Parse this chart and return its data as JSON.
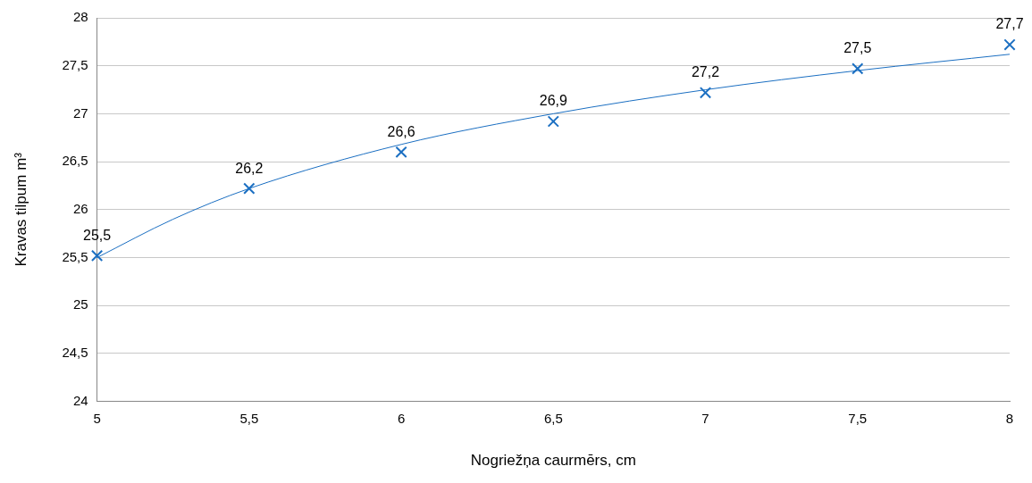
{
  "chart_data": {
    "type": "scatter",
    "xlabel": "Nogriežņa caurmērs, cm",
    "ylabel": "Kravas tilpum m³",
    "xlim": [
      5,
      8
    ],
    "xticks": [
      5,
      {
        "value": 5.5,
        "label": "5,5"
      },
      6,
      {
        "value": 6.5,
        "label": "6,5"
      },
      7,
      {
        "value": 7.5,
        "label": "7,5"
      },
      8
    ],
    "ylim": [
      24,
      28
    ],
    "yticks": [
      24,
      {
        "value": 24.5,
        "label": "24,5"
      },
      25,
      {
        "value": 25.5,
        "label": "25,5"
      },
      26,
      {
        "value": 26.5,
        "label": "26,5"
      },
      27,
      {
        "value": 27.5,
        "label": "27,5"
      },
      28
    ],
    "grid": "y",
    "legend": false,
    "series": [
      {
        "type": "scatter",
        "marker": "cross",
        "color": "#1b6fc2",
        "x": [
          5,
          5.5,
          6,
          6.5,
          7,
          7.5,
          8
        ],
        "values": [
          25.52,
          26.22,
          26.6,
          26.92,
          27.22,
          27.47,
          27.72
        ],
        "value_labels": [
          "25,5",
          "26,2",
          "26,6",
          "26,9",
          "27,2",
          "27,5",
          "27,7"
        ]
      },
      {
        "type": "line",
        "marker": "none",
        "color": "#1b6fc2",
        "x": [
          5,
          5.25,
          5.5,
          6,
          6.5,
          7,
          7.5,
          8
        ],
        "values": [
          25.5,
          25.9,
          26.22,
          26.68,
          27.0,
          27.25,
          27.45,
          27.62
        ]
      }
    ]
  }
}
